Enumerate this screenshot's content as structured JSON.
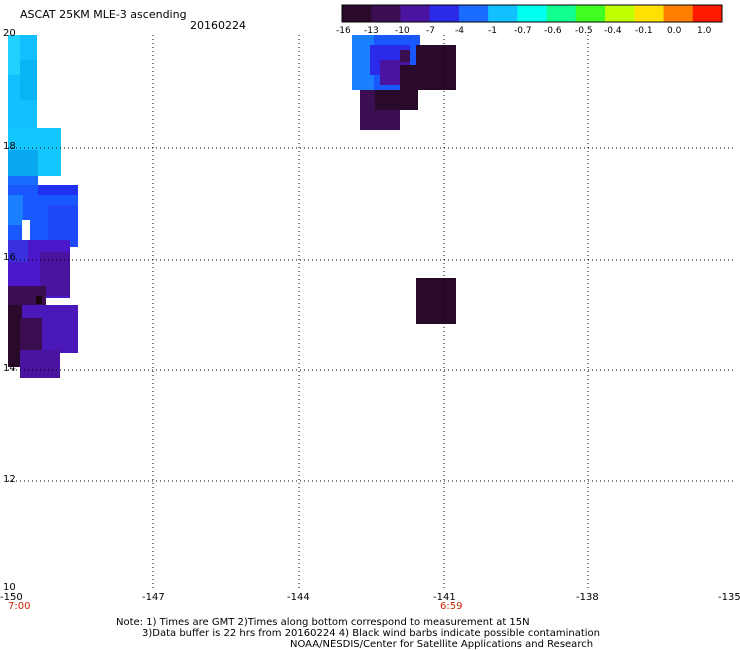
{
  "header": {
    "title": "ASCAT 25KM MLE-3 ascending",
    "date": "20160224"
  },
  "colorbar": {
    "tick_labels": [
      "-16",
      "-13",
      "-10",
      "-7",
      "-4",
      "-1",
      "-0.7",
      "-0.6",
      "-0.5",
      "-0.4",
      "-0.1",
      "0.0",
      "1.0"
    ],
    "colors": [
      "#2a0a2a",
      "#3b0e52",
      "#4a14a0",
      "#2a2ae8",
      "#1a6cff",
      "#10c0ff",
      "#00ffee",
      "#10ff90",
      "#40ff20",
      "#c0ff00",
      "#ffe000",
      "#ff8000",
      "#ff1a00"
    ]
  },
  "map": {
    "lon_ticks": [
      "-150",
      "-147",
      "-144",
      "-141",
      "-138",
      "-135"
    ],
    "lat_ticks": [
      "20",
      "18",
      "16",
      "14",
      "12",
      "10"
    ],
    "lon_range": [
      -150,
      -135
    ],
    "lat_range": [
      10,
      20
    ],
    "time_labels": [
      {
        "lon": -150,
        "text": "7:00"
      },
      {
        "lon": -141,
        "text": "6:59"
      }
    ],
    "gridlines": true,
    "grid_style": "dotted"
  },
  "notes": {
    "line1": "Note: 1) Times are GMT 2)Times along bottom correspond to measurement at 15N",
    "line2": "3)Data buffer is 22 hrs from 20160224 4) Black wind barbs indicate possible contamination",
    "line3": "NOAA/NESDIS/Center for Satellite Applications and Research"
  }
}
